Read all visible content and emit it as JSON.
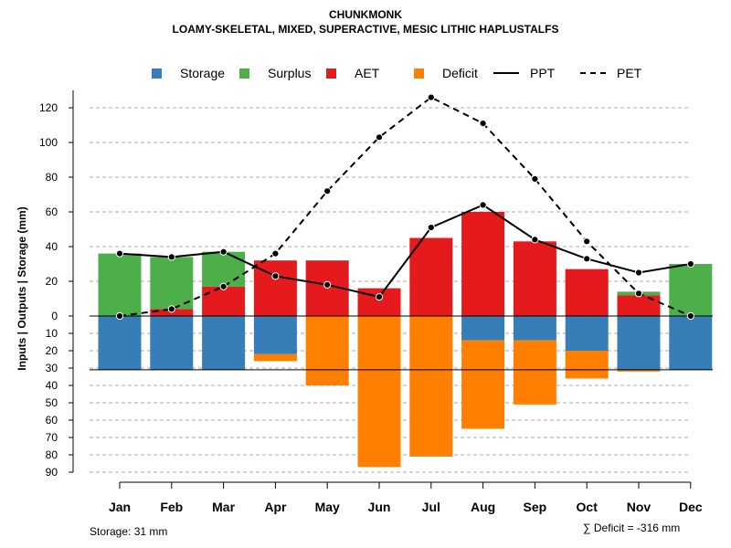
{
  "chart_data": {
    "type": "bar",
    "title": "CHUNKMONK",
    "subtitle": "LOAMY-SKELETAL, MIXED, SUPERACTIVE, MESIC LITHIC HAPLUSTALFS",
    "ylabel": "Inputs | Outputs | Storage    (mm)",
    "categories": [
      "Jan",
      "Feb",
      "Mar",
      "Apr",
      "May",
      "Jun",
      "Jul",
      "Aug",
      "Sep",
      "Oct",
      "Nov",
      "Dec"
    ],
    "ylim_upper": [
      0,
      130
    ],
    "ylim_lower": [
      0,
      90
    ],
    "upper_ticks": [
      "0",
      "20",
      "40",
      "60",
      "80",
      "100",
      "120"
    ],
    "lower_ticks": [
      "10",
      "20",
      "30",
      "40",
      "50",
      "60",
      "70",
      "80",
      "90"
    ],
    "max_storage": 31,
    "series": [
      {
        "name": "Storage",
        "color": "#377EB8",
        "values": [
          31,
          31,
          31,
          22,
          0,
          0,
          0,
          14,
          14,
          20,
          31,
          31
        ]
      },
      {
        "name": "Surplus",
        "color": "#4DAF4A",
        "values": [
          36,
          30,
          20,
          0,
          0,
          0,
          0,
          0,
          0,
          0,
          2,
          30
        ]
      },
      {
        "name": "AET",
        "color": "#E41A1C",
        "values": [
          0,
          4,
          17,
          32,
          32,
          16,
          45,
          60,
          43,
          27,
          12,
          0
        ]
      },
      {
        "name": "Deficit",
        "color": "#FF7F00",
        "values": [
          0,
          0,
          0,
          4,
          40,
          87,
          81,
          51,
          37,
          16,
          1,
          0
        ]
      },
      {
        "name": "PPT",
        "color": "#000000",
        "style": "solid",
        "values": [
          36,
          34,
          37,
          23,
          18,
          11,
          51,
          64,
          44,
          33,
          25,
          30
        ]
      },
      {
        "name": "PET",
        "color": "#000000",
        "style": "dashed",
        "values": [
          0,
          4,
          17,
          36,
          72,
          103,
          126,
          111,
          79,
          43,
          13,
          0
        ]
      }
    ],
    "legend": [
      "Storage",
      "Surplus",
      "AET",
      "Deficit",
      "PPT",
      "PET"
    ]
  },
  "footnotes": {
    "storage": "Storage: 31 mm",
    "deficit": "∑ Deficit = -316 mm"
  }
}
